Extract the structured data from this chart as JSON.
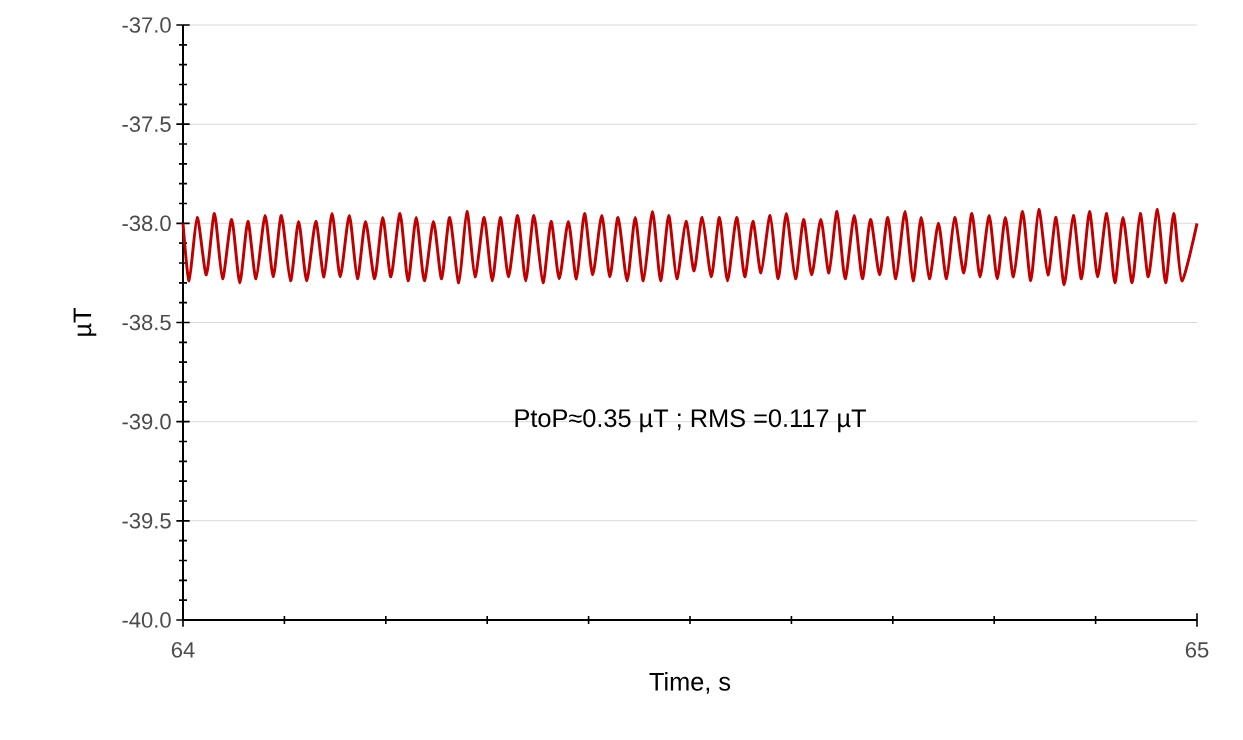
{
  "chart_data": {
    "type": "line",
    "xlabel": "Time, s",
    "ylabel": "µT",
    "annotations": [
      "PtoP≈0.35 µT ; RMS =0.117  µT"
    ],
    "xlim": [
      64,
      65
    ],
    "xticks": [
      64,
      65
    ],
    "ylim": [
      -40,
      -37
    ],
    "yticks": [
      {
        "value": -40,
        "label": "-40.0"
      },
      {
        "value": -39.5,
        "label": "-39.5"
      },
      {
        "value": -39,
        "label": "-39.0"
      },
      {
        "value": -38.5,
        "label": "-38.5"
      },
      {
        "value": -38,
        "label": "-38.0"
      },
      {
        "value": -37.5,
        "label": "-37.5"
      },
      {
        "value": -37,
        "label": "-37.0"
      }
    ],
    "grid": "y",
    "marker": "none",
    "line_style": "solid",
    "series": [
      {
        "color": "#c00000",
        "x": [
          64,
          64.006,
          64.014,
          64.023,
          64.031,
          64.039,
          64.048,
          64.056,
          64.064,
          64.072,
          64.081,
          64.089,
          64.097,
          64.106,
          64.114,
          64.122,
          64.131,
          64.139,
          64.147,
          64.155,
          64.164,
          64.172,
          64.18,
          64.189,
          64.197,
          64.205,
          64.214,
          64.222,
          64.23,
          64.238,
          64.247,
          64.255,
          64.263,
          64.272,
          64.28,
          64.288,
          64.297,
          64.305,
          64.313,
          64.321,
          64.33,
          64.338,
          64.346,
          64.355,
          64.363,
          64.371,
          64.38,
          64.388,
          64.396,
          64.404,
          64.413,
          64.421,
          64.429,
          64.438,
          64.446,
          64.454,
          64.463,
          64.471,
          64.479,
          64.487,
          64.496,
          64.504,
          64.512,
          64.521,
          64.529,
          64.537,
          64.546,
          64.554,
          64.562,
          64.57,
          64.579,
          64.587,
          64.595,
          64.604,
          64.612,
          64.62,
          64.629,
          64.637,
          64.645,
          64.653,
          64.662,
          64.67,
          64.678,
          64.687,
          64.695,
          64.703,
          64.712,
          64.72,
          64.728,
          64.736,
          64.745,
          64.753,
          64.761,
          64.77,
          64.778,
          64.786,
          64.795,
          64.803,
          64.811,
          64.819,
          64.828,
          64.836,
          64.844,
          64.853,
          64.861,
          64.869,
          64.878,
          64.886,
          64.894,
          64.902,
          64.911,
          64.919,
          64.927,
          64.936,
          64.944,
          64.952,
          64.961,
          64.969,
          64.977,
          64.985,
          65
        ],
        "values": [
          -38,
          -38.29,
          -37.97,
          -38.26,
          -37.95,
          -38.28,
          -37.98,
          -38.3,
          -37.99,
          -38.28,
          -37.96,
          -38.27,
          -37.96,
          -38.29,
          -37.99,
          -38.29,
          -37.99,
          -38.27,
          -37.95,
          -38.27,
          -37.96,
          -38.28,
          -37.99,
          -38.28,
          -37.97,
          -38.27,
          -37.95,
          -38.29,
          -37.97,
          -38.29,
          -37.99,
          -38.28,
          -37.97,
          -38.3,
          -37.94,
          -38.27,
          -37.97,
          -38.29,
          -37.97,
          -38.27,
          -37.96,
          -38.29,
          -37.96,
          -38.3,
          -37.99,
          -38.28,
          -37.99,
          -38.28,
          -37.95,
          -38.26,
          -37.96,
          -38.27,
          -37.97,
          -38.29,
          -37.97,
          -38.29,
          -37.94,
          -38.29,
          -37.96,
          -38.28,
          -37.99,
          -38.24,
          -37.97,
          -38.27,
          -37.97,
          -38.29,
          -37.97,
          -38.27,
          -37.99,
          -38.25,
          -37.96,
          -38.28,
          -37.95,
          -38.28,
          -37.98,
          -38.26,
          -37.98,
          -38.25,
          -37.94,
          -38.28,
          -37.96,
          -38.28,
          -37.98,
          -38.26,
          -37.97,
          -38.28,
          -37.94,
          -38.29,
          -37.97,
          -38.28,
          -38,
          -38.28,
          -37.97,
          -38.25,
          -37.95,
          -38.27,
          -37.96,
          -38.28,
          -37.97,
          -38.27,
          -37.94,
          -38.29,
          -37.93,
          -38.26,
          -37.97,
          -38.31,
          -37.96,
          -38.28,
          -37.94,
          -38.27,
          -37.95,
          -38.3,
          -37.97,
          -38.3,
          -37.95,
          -38.27,
          -37.93,
          -38.3,
          -37.95,
          -38.29,
          -38
        ]
      }
    ]
  }
}
